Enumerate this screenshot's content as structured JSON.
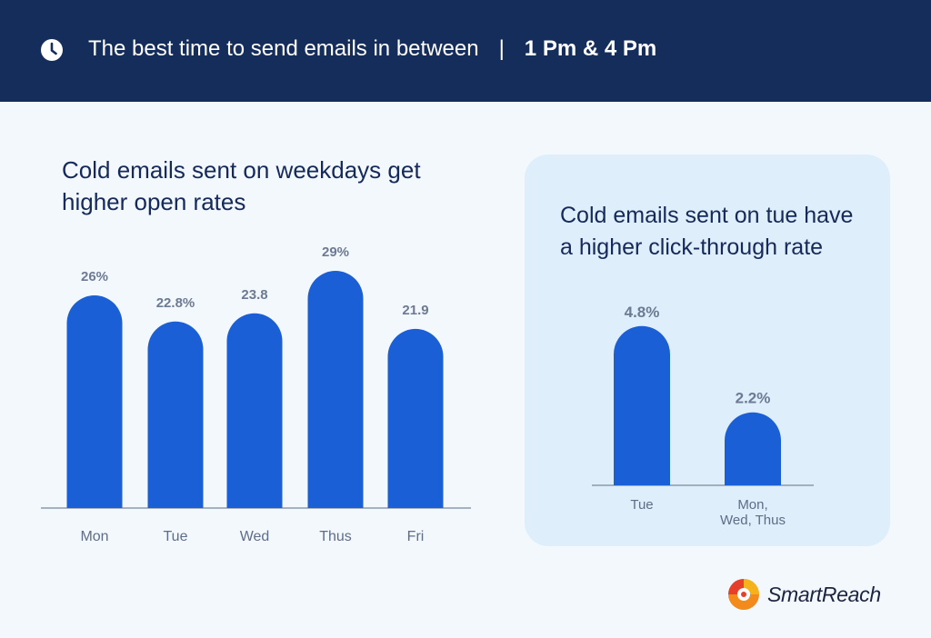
{
  "header": {
    "icon": "clock-icon",
    "text": "The best time to send emails in between",
    "separator": "|",
    "time": "1 Pm & 4 Pm",
    "background": "#152d5a"
  },
  "left_chart_title": "Cold emails sent on weekdays get higher open rates",
  "right_chart_title": "Cold emails sent on tue have a higher click-through rate",
  "brand": {
    "name": "SmartReach",
    "logo_icon": "smartreach-logo"
  },
  "chart_data": [
    {
      "type": "bar",
      "title": "Cold emails sent on weekdays get higher open rates",
      "categories": [
        "Mon",
        "Tue",
        "Wed",
        "Thus",
        "Fri"
      ],
      "values": [
        26,
        22.8,
        23.8,
        29,
        21.9
      ],
      "value_labels": [
        "26%",
        "22.8%",
        "23.8",
        "29%",
        "21.9"
      ],
      "bar_color": "#1b5fd6"
    },
    {
      "type": "bar",
      "title": "Cold emails sent on tue have a higher click-through rate",
      "categories": [
        "Tue",
        "Mon, Wed, Thus"
      ],
      "category_lines": [
        [
          "Tue"
        ],
        [
          "Mon,",
          "Wed, Thus"
        ]
      ],
      "values": [
        4.8,
        2.2
      ],
      "value_labels": [
        "4.8%",
        "2.2%"
      ],
      "bar_color": "#1b5fd6"
    }
  ]
}
